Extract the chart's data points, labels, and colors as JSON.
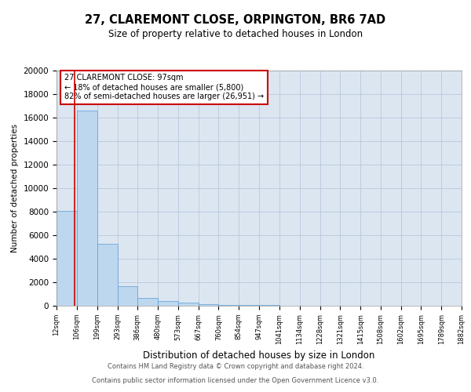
{
  "title": "27, CLAREMONT CLOSE, ORPINGTON, BR6 7AD",
  "subtitle": "Size of property relative to detached houses in London",
  "xlabel": "Distribution of detached houses by size in London",
  "ylabel": "Number of detached properties",
  "footnote1": "Contains HM Land Registry data © Crown copyright and database right 2024.",
  "footnote2": "Contains public sector information licensed under the Open Government Licence v3.0.",
  "annotation_title": "27 CLAREMONT CLOSE: 97sqm",
  "annotation_line1": "← 18% of detached houses are smaller (5,800)",
  "annotation_line2": "82% of semi-detached houses are larger (26,951) →",
  "property_size": 97,
  "bin_edges": [
    12,
    106,
    199,
    293,
    386,
    480,
    573,
    667,
    760,
    854,
    947,
    1041,
    1134,
    1228,
    1321,
    1415,
    1508,
    1602,
    1695,
    1789,
    1882
  ],
  "bar_heights": [
    8050,
    16600,
    5300,
    1700,
    700,
    420,
    250,
    150,
    100,
    70,
    50,
    30,
    20,
    15,
    10,
    8,
    6,
    4,
    3,
    2
  ],
  "bar_color": "#bdd7ee",
  "bar_edge_color": "#5b9bd5",
  "axes_bg_color": "#dce6f1",
  "vline_color": "#cc0000",
  "annotation_box_edge_color": "#cc0000",
  "background_color": "#ffffff",
  "grid_color": "#b8c8dc",
  "ylim": [
    0,
    20000
  ],
  "yticks": [
    0,
    2000,
    4000,
    6000,
    8000,
    10000,
    12000,
    14000,
    16000,
    18000,
    20000
  ]
}
